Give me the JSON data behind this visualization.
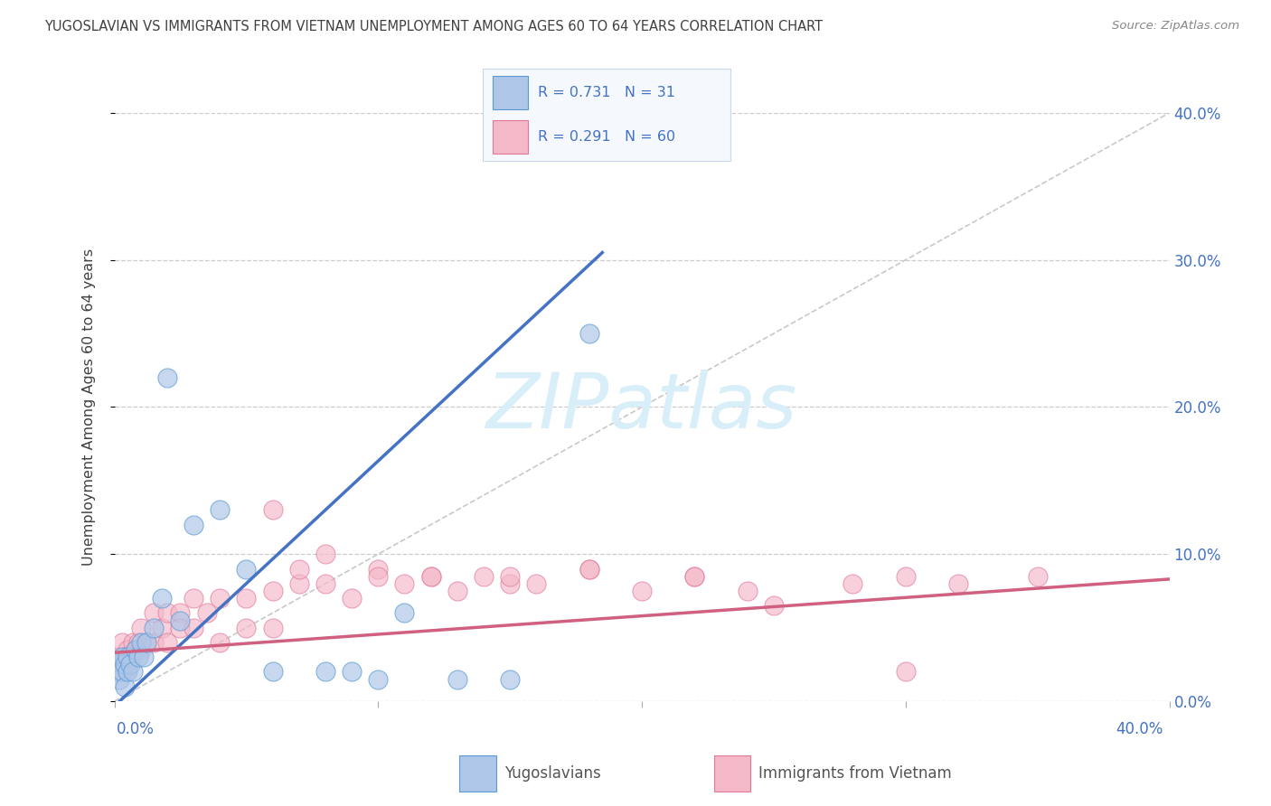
{
  "title": "YUGOSLAVIAN VS IMMIGRANTS FROM VIETNAM UNEMPLOYMENT AMONG AGES 60 TO 64 YEARS CORRELATION CHART",
  "source": "Source: ZipAtlas.com",
  "ylabel_label": "Unemployment Among Ages 60 to 64 years",
  "legend_label_blue": "Yugoslavians",
  "legend_label_pink": "Immigrants from Vietnam",
  "legend_r1": "R = 0.731",
  "legend_n1": "N = 31",
  "legend_r2": "R = 0.291",
  "legend_n2": "N = 60",
  "color_blue_fill": "#aec6e8",
  "color_blue_edge": "#5b9bd5",
  "color_pink_fill": "#f4b8c8",
  "color_pink_edge": "#e07898",
  "color_blue_line": "#4472c4",
  "color_pink_line": "#d06080",
  "color_diag": "#bbbbbb",
  "color_grid": "#cccccc",
  "color_axis_label": "#4472c4",
  "color_title": "#404040",
  "color_source": "#888888",
  "color_watermark": "#d8eef8",
  "background_color": "#ffffff",
  "xlim": [
    0,
    0.4
  ],
  "ylim": [
    0,
    0.4
  ],
  "yticks": [
    0.0,
    0.1,
    0.2,
    0.3,
    0.4
  ],
  "ytick_labels": [
    "0.0%",
    "10.0%",
    "20.0%",
    "30.0%",
    "40.0%"
  ],
  "yug_x": [
    0.001,
    0.002,
    0.002,
    0.003,
    0.003,
    0.004,
    0.004,
    0.005,
    0.005,
    0.006,
    0.007,
    0.008,
    0.009,
    0.01,
    0.011,
    0.012,
    0.015,
    0.018,
    0.02,
    0.025,
    0.03,
    0.04,
    0.05,
    0.06,
    0.08,
    0.09,
    0.1,
    0.11,
    0.13,
    0.15,
    0.18
  ],
  "yug_y": [
    0.02,
    0.025,
    0.015,
    0.03,
    0.02,
    0.025,
    0.01,
    0.02,
    0.03,
    0.025,
    0.02,
    0.035,
    0.03,
    0.04,
    0.03,
    0.04,
    0.05,
    0.07,
    0.22,
    0.055,
    0.12,
    0.13,
    0.09,
    0.02,
    0.02,
    0.02,
    0.015,
    0.06,
    0.015,
    0.015,
    0.25
  ],
  "viet_x": [
    0.001,
    0.001,
    0.002,
    0.003,
    0.003,
    0.004,
    0.004,
    0.005,
    0.005,
    0.006,
    0.007,
    0.008,
    0.009,
    0.01,
    0.01,
    0.012,
    0.015,
    0.015,
    0.018,
    0.02,
    0.02,
    0.025,
    0.025,
    0.03,
    0.03,
    0.035,
    0.04,
    0.04,
    0.05,
    0.05,
    0.06,
    0.06,
    0.07,
    0.08,
    0.09,
    0.1,
    0.11,
    0.12,
    0.13,
    0.14,
    0.15,
    0.16,
    0.18,
    0.2,
    0.22,
    0.24,
    0.25,
    0.28,
    0.3,
    0.32,
    0.06,
    0.07,
    0.08,
    0.1,
    0.12,
    0.15,
    0.18,
    0.22,
    0.3,
    0.35
  ],
  "viet_y": [
    0.03,
    0.02,
    0.025,
    0.04,
    0.025,
    0.03,
    0.02,
    0.035,
    0.025,
    0.03,
    0.04,
    0.035,
    0.04,
    0.05,
    0.035,
    0.04,
    0.06,
    0.04,
    0.05,
    0.06,
    0.04,
    0.06,
    0.05,
    0.07,
    0.05,
    0.06,
    0.07,
    0.04,
    0.07,
    0.05,
    0.075,
    0.05,
    0.08,
    0.08,
    0.07,
    0.09,
    0.08,
    0.085,
    0.075,
    0.085,
    0.08,
    0.08,
    0.09,
    0.075,
    0.085,
    0.075,
    0.065,
    0.08,
    0.085,
    0.08,
    0.13,
    0.09,
    0.1,
    0.085,
    0.085,
    0.085,
    0.09,
    0.085,
    0.02,
    0.085
  ],
  "blue_line_x": [
    -0.01,
    0.185
  ],
  "blue_line_y": [
    -0.02,
    0.305
  ],
  "pink_line_x": [
    0.0,
    0.4
  ],
  "pink_line_y": [
    0.033,
    0.083
  ]
}
